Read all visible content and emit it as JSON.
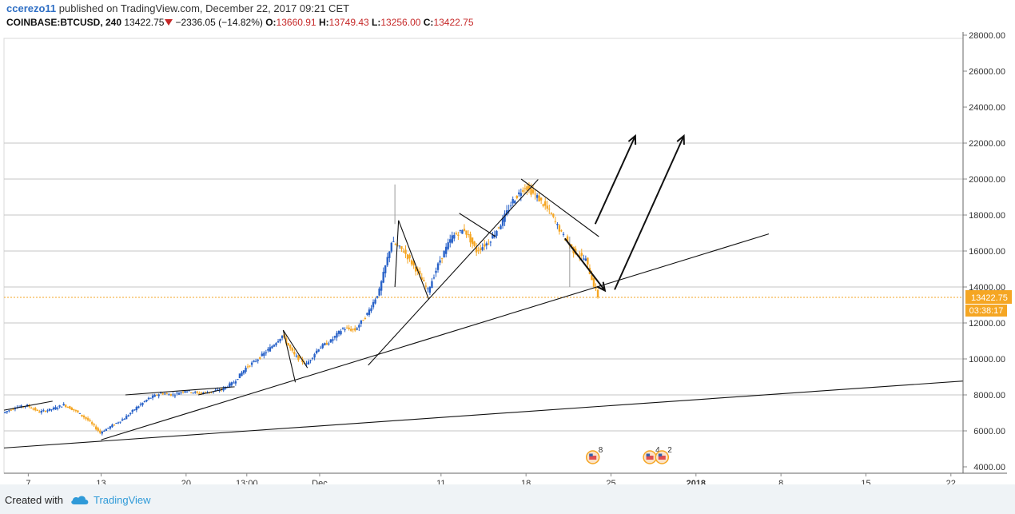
{
  "header": {
    "user": "ccerezo11",
    "published_text": "published on TradingView.com, December 22, 2017 09:21 CET",
    "symbol": "COINBASE:BTCUSD, 240",
    "last": "13422.75",
    "change": "−2336.05 (−14.82%)",
    "o_label": "O:",
    "o_value": "13660.91",
    "h_label": "H:",
    "h_value": "13749.43",
    "l_label": "L:",
    "l_value": "13256.00",
    "c_label": "C:",
    "c_value": "13422.75"
  },
  "footer": {
    "created_with": "Created with",
    "brand": "TradingView"
  },
  "colors": {
    "up": "#2962c8",
    "down": "#f5a623",
    "price_line": "#f5a623",
    "grid": "#c6c6c6",
    "red": "#c62828"
  },
  "chart_data": {
    "type": "candlestick",
    "y_ticks": [
      "28000.00",
      "26000.00",
      "24000.00",
      "22000.00",
      "20000.00",
      "18000.00",
      "16000.00",
      "14000.00",
      "12000.00",
      "10000.00",
      "8000.00",
      "6000.00",
      "4000.00"
    ],
    "ylim": [
      4000,
      28500
    ],
    "x_ticks": [
      "7",
      "13",
      "20",
      "13:00",
      "Dec",
      "11",
      "18",
      "25",
      "2018",
      "8",
      "15",
      "22"
    ],
    "x_tick_days": [
      -24,
      -18,
      -11,
      -6,
      0,
      10,
      17,
      24,
      31,
      38,
      45,
      52
    ],
    "xlim": [
      -26,
      53
    ],
    "price_label": "13422.75",
    "countdown": "03:38:17",
    "last_price": 13422.75,
    "price_path": [
      [
        -26,
        7000
      ],
      [
        -25,
        7300
      ],
      [
        -24,
        7400
      ],
      [
        -23,
        7050
      ],
      [
        -22,
        7200
      ],
      [
        -21,
        7450
      ],
      [
        -20,
        7100
      ],
      [
        -19,
        6600
      ],
      [
        -18,
        5900
      ],
      [
        -17,
        6300
      ],
      [
        -16,
        6700
      ],
      [
        -15,
        7300
      ],
      [
        -14,
        7800
      ],
      [
        -13,
        8100
      ],
      [
        -12,
        8000
      ],
      [
        -11,
        8250
      ],
      [
        -10,
        8100
      ],
      [
        -9,
        8150
      ],
      [
        -8,
        8300
      ],
      [
        -7,
        8700
      ],
      [
        -6,
        9500
      ],
      [
        -5,
        10000
      ],
      [
        -4,
        10600
      ],
      [
        -3,
        11300
      ],
      [
        -2,
        10200
      ],
      [
        -1,
        9700
      ],
      [
        0,
        10600
      ],
      [
        1,
        11000
      ],
      [
        2,
        11700
      ],
      [
        3,
        11600
      ],
      [
        4,
        12500
      ],
      [
        5,
        13800
      ],
      [
        6,
        16500
      ],
      [
        7,
        16000
      ],
      [
        8,
        15000
      ],
      [
        9,
        13800
      ],
      [
        10,
        15500
      ],
      [
        11,
        16800
      ],
      [
        12,
        17200
      ],
      [
        13,
        16000
      ],
      [
        14,
        16500
      ],
      [
        15,
        17500
      ],
      [
        16,
        18800
      ],
      [
        17,
        19600
      ],
      [
        18,
        19000
      ],
      [
        19,
        18200
      ],
      [
        20,
        17000
      ],
      [
        21,
        16000
      ],
      [
        22,
        15500
      ],
      [
        23,
        13422.75
      ]
    ],
    "up_spikes": [
      [
        6.2,
        17500,
        19700
      ],
      [
        20.6,
        14000,
        16800
      ]
    ],
    "trendlines": [
      [
        [
          -26,
          5050
        ],
        [
          53,
          8770
        ]
      ],
      [
        [
          -18,
          5500
        ],
        [
          37,
          16950
        ]
      ],
      [
        [
          4,
          9650
        ],
        [
          18,
          19980
        ]
      ],
      [
        [
          -26,
          7150
        ],
        [
          -22,
          7650
        ]
      ],
      [
        [
          -16,
          8000
        ],
        [
          -7,
          8450
        ]
      ],
      [
        [
          -10,
          8000
        ],
        [
          -8,
          8300
        ]
      ],
      [
        [
          -3,
          11600
        ],
        [
          -1,
          9500
        ]
      ],
      [
        [
          -3,
          11600
        ],
        [
          -2,
          8700
        ]
      ],
      [
        [
          6.5,
          17700
        ],
        [
          9,
          13300
        ]
      ],
      [
        [
          6.5,
          17700
        ],
        [
          6.2,
          14000
        ]
      ],
      [
        [
          11.5,
          18100
        ],
        [
          14.5,
          16800
        ]
      ],
      [
        [
          16.6,
          20000
        ],
        [
          23,
          16800
        ]
      ]
    ],
    "arrows": [
      [
        [
          22.7,
          17500
        ],
        [
          26,
          22400
        ]
      ],
      [
        [
          20.2,
          16700
        ],
        [
          23.5,
          13800
        ]
      ],
      [
        [
          24.3,
          13850
        ],
        [
          30,
          22400
        ]
      ]
    ],
    "events": [
      {
        "day": 22.5,
        "count": "8"
      },
      {
        "day": 27.2,
        "count": "4"
      },
      {
        "day": 28.2,
        "count": "2"
      }
    ]
  }
}
